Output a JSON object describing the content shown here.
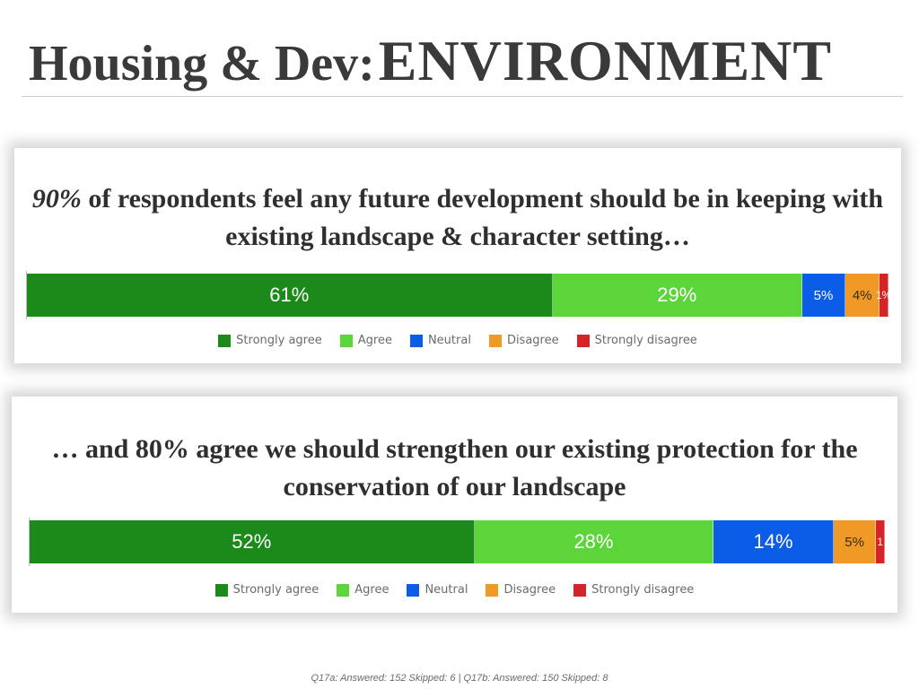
{
  "header": {
    "title_part1": "Housing & Dev:",
    "title_part2": "ENVIRONMENT"
  },
  "panels": [
    {
      "heading_pct": "90%",
      "heading_rest": " of respondents feel any future development should be in keeping with existing landscape & character setting…"
    },
    {
      "heading": "… and 80% agree we should strengthen our existing protection for the conservation of our landscape"
    }
  ],
  "chart_data": [
    {
      "type": "bar",
      "orientation": "horizontal-stacked-100",
      "categories": [
        "Strongly agree",
        "Agree",
        "Neutral",
        "Disagree",
        "Strongly disagree"
      ],
      "values": [
        61,
        29,
        5,
        4,
        1
      ],
      "labels": [
        "61%",
        "29%",
        "5%",
        "4%",
        "1%"
      ],
      "colors": [
        "#1b8a1b",
        "#5cd53b",
        "#0b5de8",
        "#ef9a26",
        "#d42428"
      ],
      "legend_position": "bottom"
    },
    {
      "type": "bar",
      "orientation": "horizontal-stacked-100",
      "categories": [
        "Strongly agree",
        "Agree",
        "Neutral",
        "Disagree",
        "Strongly disagree"
      ],
      "values": [
        52,
        28,
        14,
        5,
        1
      ],
      "labels": [
        "52%",
        "28%",
        "14%",
        "5%",
        "1"
      ],
      "colors": [
        "#1b8a1b",
        "#5cd53b",
        "#0b5de8",
        "#ef9a26",
        "#d42428"
      ],
      "legend_position": "bottom"
    }
  ],
  "footer": {
    "note": "Q17a: Answered: 152  Skipped: 6  |  Q17b: Answered: 150  Skipped: 8"
  }
}
